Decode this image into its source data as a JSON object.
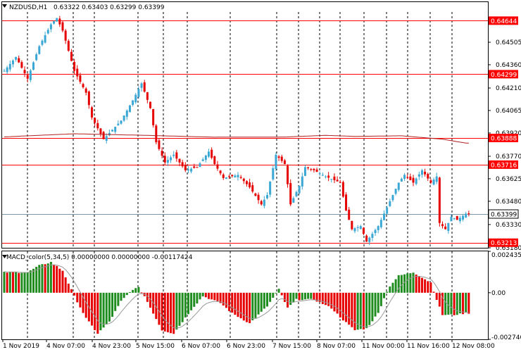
{
  "header": {
    "symbol": "NZDUSD,H1",
    "ohlc": "0.63322 0.63403 0.63299 0.63399",
    "collapse_icon": "triangle-down-icon"
  },
  "macd": {
    "label": "MACD_color(5,34,5) 0.00000000 0.00000000 -0.00117424",
    "collapse_icon": "triangle-down-icon",
    "axis_labels": [
      "0.0024352",
      "0.00",
      "-0.0027400"
    ]
  },
  "price_axis": {
    "tick_labels": [
      "0.64505",
      "0.64360",
      "0.64210",
      "0.64065",
      "0.63920",
      "0.63770",
      "0.63625",
      "0.63480",
      "0.63330",
      "0.63180"
    ]
  },
  "time_axis": {
    "labels": [
      "1 Nov 2019",
      "4 Nov 07:00",
      "4 Nov 23:00",
      "5 Nov 15:00",
      "6 Nov 07:00",
      "6 Nov 23:00",
      "7 Nov 15:00",
      "8 Nov 07:00",
      "11 Nov 00:00",
      "11 Nov 16:00",
      "12 Nov 08:00"
    ]
  },
  "levels": [
    {
      "label": "0.64644",
      "color": "#ff0000"
    },
    {
      "label": "0.64299",
      "color": "#ff0000"
    },
    {
      "label": "0.63888",
      "color": "#ff0000"
    },
    {
      "label": "0.63716",
      "color": "#ff0000"
    },
    {
      "label": "0.63213",
      "color": "#ff0000"
    }
  ],
  "current_price": {
    "label": "0.63399",
    "color": "#ffffff"
  },
  "colors": {
    "bull": "#3aa7d4",
    "bear": "#e60000",
    "macd_pos": "#1e8c1e",
    "macd_neg": "#e60000",
    "ma_line": "#b02020",
    "signal_line": "#999999",
    "grid": "#000000",
    "level_bg": "#ff0000"
  },
  "chart_data": {
    "type": "candlestick",
    "symbol": "NZDUSD",
    "timeframe": "H1",
    "ylim": [
      0.6318,
      0.647
    ],
    "levels": [
      0.64644,
      0.64299,
      0.63888,
      0.63716,
      0.63213
    ],
    "last_price": 0.63399,
    "close_path": [
      [
        0,
        0.6432
      ],
      [
        4,
        0.6441
      ],
      [
        8,
        0.6427
      ],
      [
        12,
        0.6448
      ],
      [
        16,
        0.6462
      ],
      [
        18,
        0.6466
      ],
      [
        20,
        0.6458
      ],
      [
        24,
        0.6432
      ],
      [
        28,
        0.6418
      ],
      [
        30,
        0.6402
      ],
      [
        34,
        0.6388
      ],
      [
        40,
        0.64
      ],
      [
        44,
        0.6413
      ],
      [
        47,
        0.6424
      ],
      [
        50,
        0.6408
      ],
      [
        52,
        0.6386
      ],
      [
        55,
        0.6373
      ],
      [
        58,
        0.6378
      ],
      [
        62,
        0.6368
      ],
      [
        66,
        0.637
      ],
      [
        70,
        0.638
      ],
      [
        72,
        0.6372
      ],
      [
        75,
        0.6363
      ],
      [
        80,
        0.6365
      ],
      [
        84,
        0.6357
      ],
      [
        88,
        0.6346
      ],
      [
        90,
        0.6352
      ],
      [
        93,
        0.6378
      ],
      [
        96,
        0.6372
      ],
      [
        98,
        0.6346
      ],
      [
        101,
        0.6358
      ],
      [
        103,
        0.637
      ],
      [
        106,
        0.6368
      ],
      [
        110,
        0.6364
      ],
      [
        115,
        0.636
      ],
      [
        117,
        0.6342
      ],
      [
        119,
        0.633
      ],
      [
        122,
        0.6332
      ],
      [
        124,
        0.6322
      ],
      [
        128,
        0.6332
      ],
      [
        132,
        0.6348
      ],
      [
        135,
        0.636
      ],
      [
        137,
        0.6365
      ],
      [
        140,
        0.636
      ],
      [
        143,
        0.6368
      ],
      [
        146,
        0.636
      ],
      [
        148,
        0.6364
      ],
      [
        149,
        0.6334
      ],
      [
        151,
        0.633
      ],
      [
        153,
        0.6338
      ],
      [
        155,
        0.6336
      ],
      [
        158,
        0.634
      ]
    ],
    "moving_average": [
      [
        0,
        0.63895
      ],
      [
        24,
        0.63915
      ],
      [
        48,
        0.63905
      ],
      [
        72,
        0.63893
      ],
      [
        96,
        0.63894
      ],
      [
        110,
        0.63905
      ],
      [
        120,
        0.63898
      ],
      [
        136,
        0.63902
      ],
      [
        150,
        0.6388
      ],
      [
        158,
        0.63855
      ]
    ],
    "macd": {
      "ylim": [
        -0.00274,
        0.0024352
      ],
      "histogram_path": [
        [
          0,
          0.0012
        ],
        [
          8,
          0.0012
        ],
        [
          12,
          0.0016
        ],
        [
          16,
          0.0018
        ],
        [
          20,
          0.0013
        ],
        [
          24,
          -0.0002
        ],
        [
          28,
          -0.0015
        ],
        [
          32,
          -0.0024
        ],
        [
          36,
          -0.0017
        ],
        [
          40,
          -0.0005
        ],
        [
          44,
          0.0002
        ],
        [
          46,
          0.0003
        ],
        [
          48,
          -0.0002
        ],
        [
          54,
          -0.0022
        ],
        [
          58,
          -0.0024
        ],
        [
          64,
          -0.001
        ],
        [
          68,
          -0.0002
        ],
        [
          74,
          -0.0006
        ],
        [
          78,
          -0.0012
        ],
        [
          84,
          -0.0018
        ],
        [
          90,
          -0.0008
        ],
        [
          94,
          0.0002
        ],
        [
          97,
          -0.0009
        ],
        [
          100,
          -0.0004
        ],
        [
          106,
          -0.0004
        ],
        [
          112,
          -0.0009
        ],
        [
          116,
          -0.0016
        ],
        [
          120,
          -0.0022
        ],
        [
          124,
          -0.0021
        ],
        [
          128,
          -0.0012
        ],
        [
          130,
          -0.0003
        ],
        [
          132,
          0.0004
        ],
        [
          135,
          0.001
        ],
        [
          140,
          0.0012
        ],
        [
          146,
          0.0006
        ],
        [
          148,
          -0.0004
        ],
        [
          150,
          -0.0013
        ],
        [
          154,
          -0.0013
        ],
        [
          158,
          -0.0012
        ]
      ]
    }
  }
}
